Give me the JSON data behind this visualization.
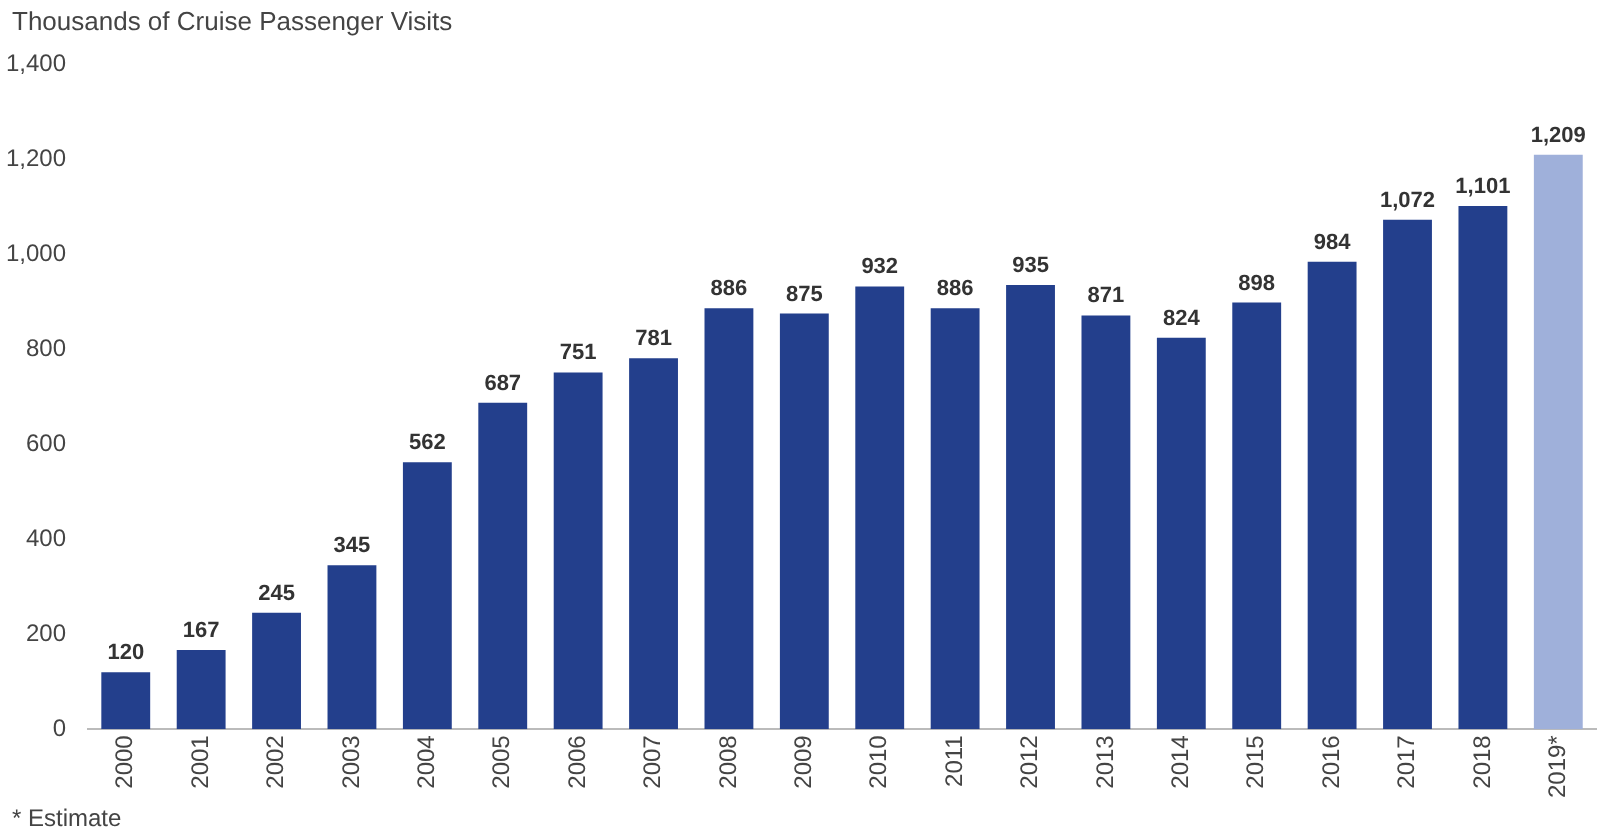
{
  "chart_data": {
    "type": "bar",
    "title": "Thousands of Cruise Passenger Visits",
    "categories": [
      "2000",
      "2001",
      "2002",
      "2003",
      "2004",
      "2005",
      "2006",
      "2007",
      "2008",
      "2009",
      "2010",
      "2011",
      "2012",
      "2013",
      "2014",
      "2015",
      "2016",
      "2017",
      "2018",
      "2019*"
    ],
    "values": [
      120,
      167,
      245,
      345,
      562,
      687,
      751,
      781,
      886,
      875,
      932,
      886,
      935,
      871,
      824,
      898,
      984,
      1072,
      1101,
      1209
    ],
    "value_labels": [
      "120",
      "167",
      "245",
      "345",
      "562",
      "687",
      "751",
      "781",
      "886",
      "875",
      "932",
      "886",
      "935",
      "871",
      "824",
      "898",
      "984",
      "1,072",
      "1,101",
      "1,209"
    ],
    "colors": [
      "#233f8c",
      "#233f8c",
      "#233f8c",
      "#233f8c",
      "#233f8c",
      "#233f8c",
      "#233f8c",
      "#233f8c",
      "#233f8c",
      "#233f8c",
      "#233f8c",
      "#233f8c",
      "#233f8c",
      "#233f8c",
      "#233f8c",
      "#233f8c",
      "#233f8c",
      "#233f8c",
      "#233f8c",
      "#9fb0da"
    ],
    "ylim": [
      0,
      1400
    ],
    "yticks": [
      0,
      {
        "value": 200,
        "label": "200"
      },
      {
        "value": 400,
        "label": "400"
      },
      {
        "value": 600,
        "label": "600"
      },
      {
        "value": 800,
        "label": "800"
      },
      {
        "value": 1000,
        "label": "1,000"
      },
      {
        "value": 1200,
        "label": "1,200"
      },
      {
        "value": 1400,
        "label": "1,400"
      }
    ],
    "grid": false,
    "legend": false,
    "annotations": [
      "* Estimate"
    ]
  }
}
